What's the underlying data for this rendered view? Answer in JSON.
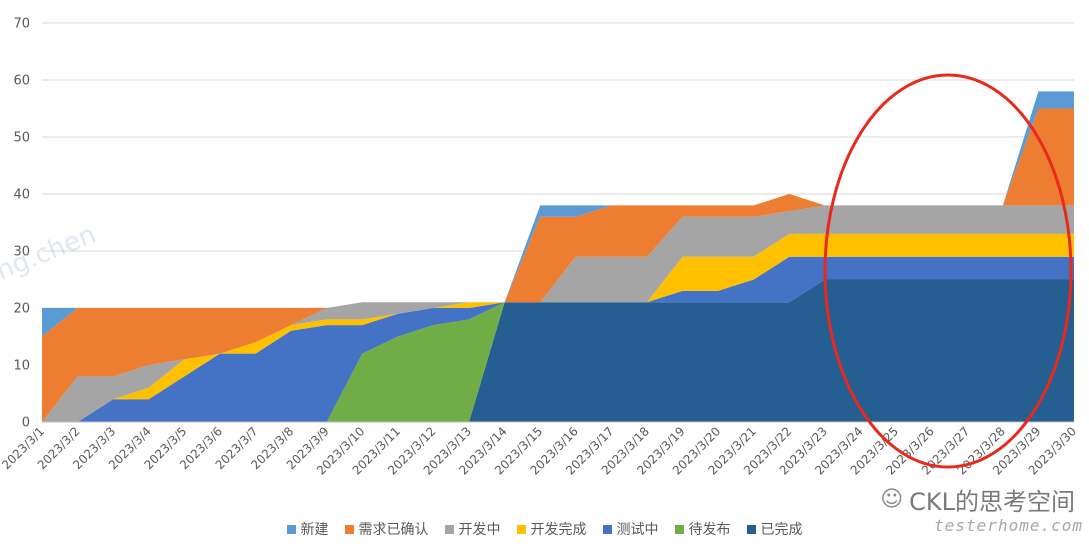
{
  "chart_data": {
    "type": "area",
    "stacked": true,
    "categories": [
      "2023/3/1",
      "2023/3/2",
      "2023/3/3",
      "2023/3/4",
      "2023/3/5",
      "2023/3/6",
      "2023/3/7",
      "2023/3/8",
      "2023/3/9",
      "2023/3/10",
      "2023/3/11",
      "2023/3/12",
      "2023/3/13",
      "2023/3/14",
      "2023/3/15",
      "2023/3/16",
      "2023/3/17",
      "2023/3/18",
      "2023/3/19",
      "2023/3/20",
      "2023/3/21",
      "2023/3/22",
      "2023/3/23",
      "2023/3/24",
      "2023/3/25",
      "2023/3/26",
      "2023/3/27",
      "2023/3/28",
      "2023/3/29",
      "2023/3/30"
    ],
    "series": [
      {
        "name": "已完成",
        "color": "#255E91",
        "values": [
          0,
          0,
          0,
          0,
          0,
          0,
          0,
          0,
          0,
          0,
          0,
          0,
          0,
          21,
          21,
          21,
          21,
          21,
          21,
          21,
          21,
          21,
          25,
          25,
          25,
          25,
          25,
          25,
          25,
          25
        ]
      },
      {
        "name": "待发布",
        "color": "#70AD47",
        "values": [
          0,
          0,
          0,
          0,
          0,
          0,
          0,
          0,
          0,
          12,
          15,
          17,
          18,
          0,
          0,
          0,
          0,
          0,
          0,
          0,
          0,
          0,
          0,
          0,
          0,
          0,
          0,
          0,
          0,
          0
        ]
      },
      {
        "name": "测试中",
        "color": "#4472C4",
        "values": [
          0,
          0,
          4,
          4,
          8,
          12,
          12,
          16,
          17,
          5,
          4,
          3,
          2,
          0,
          0,
          0,
          0,
          0,
          2,
          2,
          4,
          8,
          4,
          4,
          4,
          4,
          4,
          4,
          4,
          4
        ]
      },
      {
        "name": "开发完成",
        "color": "#FFC000",
        "values": [
          0,
          0,
          0,
          2,
          3,
          0,
          2,
          1,
          1,
          1,
          0,
          0,
          1,
          0,
          0,
          0,
          0,
          0,
          6,
          6,
          4,
          4,
          4,
          4,
          4,
          4,
          4,
          4,
          4,
          4
        ]
      },
      {
        "name": "开发中",
        "color": "#A5A5A5",
        "values": [
          0,
          8,
          4,
          4,
          0,
          0,
          0,
          0,
          2,
          3,
          2,
          1,
          0,
          0,
          0,
          8,
          8,
          8,
          7,
          7,
          7,
          4,
          5,
          5,
          5,
          5,
          5,
          5,
          5,
          5
        ]
      },
      {
        "name": "需求已确认",
        "color": "#ED7D31",
        "values": [
          15,
          12,
          12,
          10,
          9,
          8,
          6,
          3,
          0,
          0,
          0,
          0,
          0,
          0,
          15,
          7,
          9,
          9,
          2,
          2,
          2,
          3,
          0,
          0,
          0,
          0,
          0,
          0,
          17,
          17
        ]
      },
      {
        "name": "新建",
        "color": "#5B9BD5",
        "values": [
          5,
          0,
          0,
          0,
          0,
          0,
          0,
          0,
          0,
          0,
          0,
          0,
          0,
          0,
          2,
          2,
          0,
          0,
          0,
          0,
          0,
          0,
          0,
          0,
          0,
          0,
          0,
          0,
          3,
          3
        ]
      }
    ],
    "legend_order": [
      "新建",
      "需求已确认",
      "开发中",
      "开发完成",
      "测试中",
      "待发布",
      "已完成"
    ],
    "ylim": [
      0,
      70
    ],
    "yticks": [
      0,
      10,
      20,
      30,
      40,
      50,
      60,
      70
    ],
    "grid": true,
    "legend_position": "bottom",
    "xlabel": "",
    "ylabel": "",
    "annotation": {
      "type": "ellipse",
      "color": "#E8291C"
    }
  },
  "watermark": {
    "icon": "wechat-icon",
    "text": "CKL的思考空间",
    "site": "testerhome.com"
  },
  "faint_watermark": "ng.chen"
}
